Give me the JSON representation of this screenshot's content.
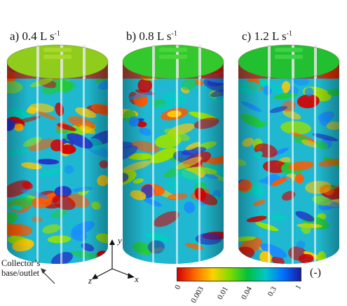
{
  "panels": [
    {
      "label": "a)  0.4 L s",
      "sup": "-1"
    },
    {
      "label": "b) 0.8 L s",
      "sup": "-1"
    },
    {
      "label": "c) 1.2 L s",
      "sup": "-1"
    }
  ],
  "axes": {
    "y": "y",
    "x": "x",
    "z": "z"
  },
  "annotation": {
    "line1": "Collector’s",
    "line2": "base/outlet"
  },
  "colorbar": {
    "ticks": [
      "0",
      "0.003",
      "0.01",
      "0.04",
      "0.3",
      "1"
    ],
    "unit": "(-)",
    "colors": [
      "#d40000",
      "#ff6a00",
      "#ffd200",
      "#7ddc00",
      "#00c040",
      "#00c8c8",
      "#0070ff",
      "#1a1aa0"
    ]
  }
}
